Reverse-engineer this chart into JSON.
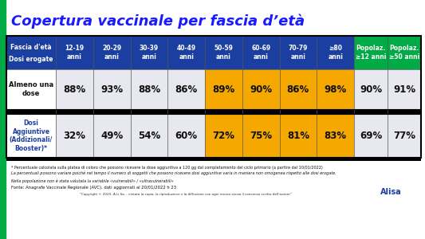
{
  "title": "Copertura vaccinale per fascia d’età",
  "title_color": "#1a1aff",
  "bg_color": "#ffffff",
  "left_bar_color": "#00aa44",
  "header_bg": "#1a3fa0",
  "header_text_color": "#ffffff",
  "green_header_bg": "#00aa44",
  "col_headers": [
    "12-19\nanni",
    "20-29\nanni",
    "30-39\nanni",
    "40-49\nanni",
    "50-59\nanni",
    "60-69\nanni",
    "70-79\nanni",
    "≥80\nanni",
    "Popolaz.\n≥12 anni",
    "Popolaz.\n≥50 anni"
  ],
  "row_headers": [
    "Almeno una\ndose",
    "Dosi\nAggiuntive\n(Addizionali/\nBooster)*"
  ],
  "row1_values": [
    "88%",
    "93%",
    "88%",
    "86%",
    "89%",
    "90%",
    "86%",
    "98%",
    "90%",
    "91%"
  ],
  "row2_values": [
    "32%",
    "49%",
    "54%",
    "60%",
    "72%",
    "75%",
    "81%",
    "83%",
    "69%",
    "77%"
  ],
  "row1_colors": [
    "#e8e8f0",
    "#e8e8f0",
    "#e8e8f0",
    "#e8e8f0",
    "#f5a800",
    "#f5a800",
    "#f5a800",
    "#f5a800",
    "#e8e8f0",
    "#e8e8f0"
  ],
  "row2_colors": [
    "#e8e8f0",
    "#e8e8f0",
    "#e8e8f0",
    "#e8e8f0",
    "#f5a800",
    "#f5a800",
    "#f5a800",
    "#f5a800",
    "#e8e8f0",
    "#e8e8f0"
  ],
  "row_header_bg": "#ffffff",
  "row2_header_text_color": "#1a3fa0",
  "footer_text1": "* Percentuale calcolata sulla platea di coloro che possono ricevere la dose aggiuntiva a 120 gg dal completamento del ciclo primario (a partire dal 10/01/2022)",
  "footer_text2": "La percentuali possono variare poiché nel tempo il numero di soggetti che possono ricevere dosi aggiuntive varia in maniera non omogenea rispetto alle dosi erogate.",
  "footer_text3": "Nella popolazione non è stata valutata la variabile «vulnerabili» / «ultravulnerabili»",
  "footer_source": "Fonte: Anagrafe Vaccinale Regionale (AVC), dati aggiornati al 20/01/2022 h 23",
  "footer_copyright": "\"Copyright © 2020- A.Li.Sa. - vietata la copia, la riproduzione e la diffusione con ogni mezzo senza il consenso scritto dell’autore\".",
  "black_divider_color": "#000000",
  "table_border_color": "#000000"
}
